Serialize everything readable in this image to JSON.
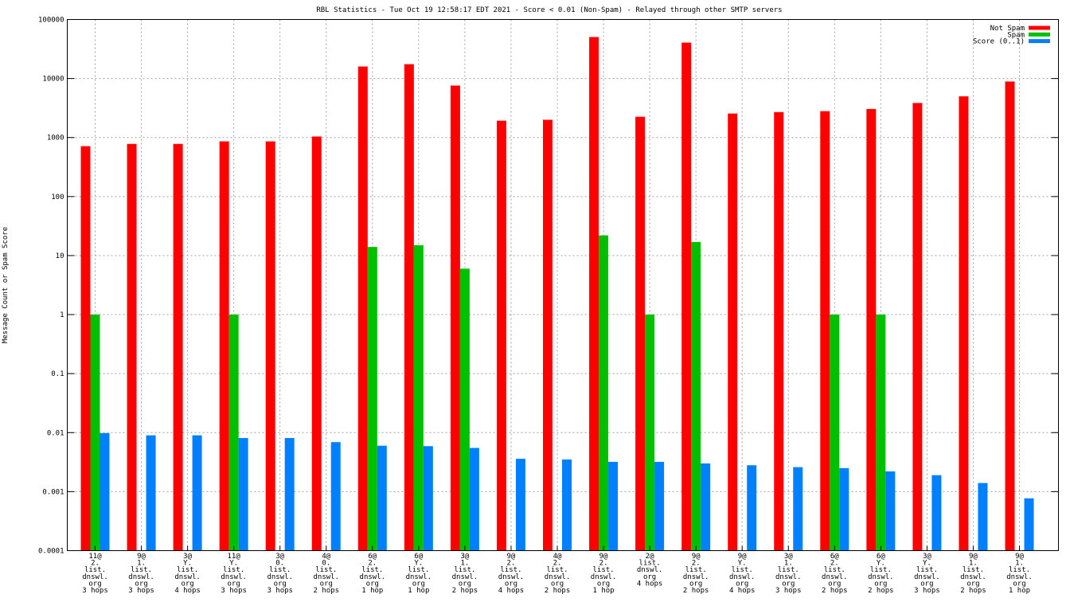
{
  "chart_data": {
    "type": "bar",
    "title": "RBL Statistics - Tue Oct 19 12:58:17 EDT 2021 - Score < 0.01 (Non-Spam) - Relayed through other SMTP servers",
    "xlabel": "",
    "ylabel": "Message Count or Spam Score",
    "yscale": "log",
    "ylim": [
      0.0001,
      100000
    ],
    "yticks": [
      "0.0001",
      "0.001",
      "0.01",
      "0.1",
      "1",
      "10",
      "100",
      "1000",
      "10000",
      "100000"
    ],
    "grid": true,
    "legend_position": "top-right",
    "categories": [
      [
        "11@",
        "2.",
        "list.",
        "dnswl.",
        "org",
        "3 hops"
      ],
      [
        "9@",
        "1.",
        "list.",
        "dnswl.",
        "org",
        "3 hops"
      ],
      [
        "3@",
        "Y.",
        "list.",
        "dnswl.",
        "org",
        "4 hops"
      ],
      [
        "11@",
        "Y.",
        "list.",
        "dnswl.",
        "org",
        "3 hops"
      ],
      [
        "3@",
        "0.",
        "list.",
        "dnswl.",
        "org",
        "3 hops"
      ],
      [
        "4@",
        "0.",
        "list.",
        "dnswl.",
        "org",
        "2 hops"
      ],
      [
        "6@",
        "2.",
        "list.",
        "dnswl.",
        "org",
        "1 hop"
      ],
      [
        "6@",
        "Y.",
        "list.",
        "dnswl.",
        "org",
        "1 hop"
      ],
      [
        "3@",
        "1.",
        "list.",
        "dnswl.",
        "org",
        "2 hops"
      ],
      [
        "9@",
        "2.",
        "list.",
        "dnswl.",
        "org",
        "4 hops"
      ],
      [
        "4@",
        "2.",
        "list.",
        "dnswl.",
        "org",
        "2 hops"
      ],
      [
        "9@",
        "2.",
        "list.",
        "dnswl.",
        "org",
        "1 hop"
      ],
      [
        "2@",
        "list.",
        "dnswl.",
        "org",
        "4 hops"
      ],
      [
        "9@",
        "2.",
        "list.",
        "dnswl.",
        "org",
        "2 hops"
      ],
      [
        "9@",
        "Y.",
        "list.",
        "dnswl.",
        "org",
        "4 hops"
      ],
      [
        "3@",
        "1.",
        "list.",
        "dnswl.",
        "org",
        "3 hops"
      ],
      [
        "6@",
        "2.",
        "list.",
        "dnswl.",
        "org",
        "2 hops"
      ],
      [
        "6@",
        "Y.",
        "list.",
        "dnswl.",
        "org",
        "2 hops"
      ],
      [
        "3@",
        "Y.",
        "list.",
        "dnswl.",
        "org",
        "3 hops"
      ],
      [
        "9@",
        "1.",
        "list.",
        "dnswl.",
        "org",
        "2 hops"
      ],
      [
        "9@",
        "1.",
        "list.",
        "dnswl.",
        "org",
        "1 hop"
      ]
    ],
    "series": [
      {
        "name": "Not Spam",
        "color": "#ff0000",
        "values": [
          714,
          780,
          780,
          860,
          860,
          1040,
          16000,
          17500,
          7600,
          1930,
          2000,
          50500,
          2250,
          40600,
          2550,
          2700,
          2800,
          3050,
          3850,
          5000,
          8900
        ]
      },
      {
        "name": "Spam",
        "color": "#00c000",
        "values": [
          1,
          0,
          0,
          1,
          0,
          0,
          14,
          15,
          6,
          0,
          0,
          22,
          1,
          17,
          0,
          0,
          1,
          1,
          0,
          0,
          0
        ]
      },
      {
        "name": "Score (0..1)",
        "color": "#0080ff",
        "values": [
          0.0098,
          0.009,
          0.009,
          0.0081,
          0.0081,
          0.0069,
          0.006,
          0.0059,
          0.0055,
          0.0036,
          0.0035,
          0.0032,
          0.0032,
          0.003,
          0.0028,
          0.0026,
          0.0025,
          0.0022,
          0.0019,
          0.0014,
          0.00077
        ]
      }
    ]
  }
}
